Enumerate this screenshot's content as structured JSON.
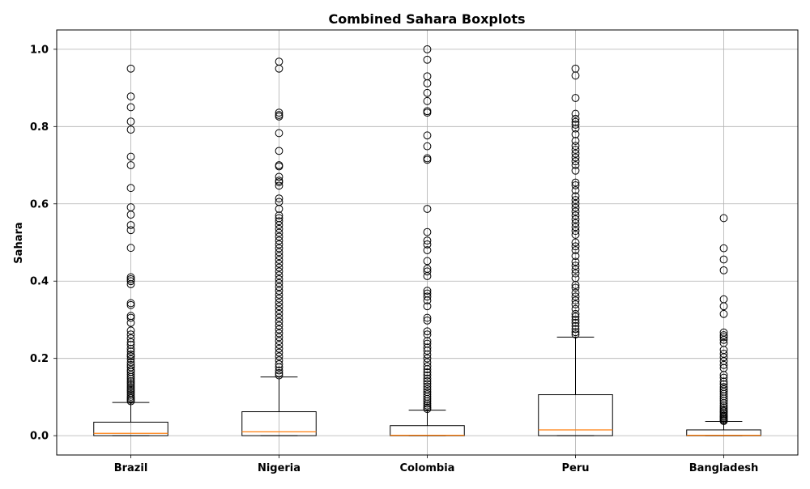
{
  "chart_data": {
    "type": "boxplot",
    "title": "Combined Sahara Boxplots",
    "xlabel": "",
    "ylabel": "Sahara",
    "ylim": [
      -0.05,
      1.05
    ],
    "yticks": [
      0.0,
      0.2,
      0.4,
      0.6,
      0.8,
      1.0
    ],
    "ytick_labels": [
      "0.0",
      "0.2",
      "0.4",
      "0.6",
      "0.8",
      "1.0"
    ],
    "grid": true,
    "colors": {
      "box": "#000000",
      "median": "#ff7f0e",
      "grid": "#b0b0b0"
    },
    "categories": [
      "Brazil",
      "Nigeria",
      "Colombia",
      "Peru",
      "Bangladesh"
    ],
    "boxes": [
      {
        "name": "Brazil",
        "whisker_low": 0.0,
        "q1": 0.0,
        "median": 0.006,
        "q3": 0.035,
        "whisker_high": 0.086,
        "outliers": [
          0.95,
          0.878,
          0.85,
          0.813,
          0.792,
          0.722,
          0.7,
          0.641,
          0.591,
          0.572,
          0.545,
          0.532,
          0.486,
          0.41,
          0.405,
          0.4,
          0.392,
          0.343,
          0.338,
          0.31,
          0.305,
          0.292,
          0.272,
          0.262,
          0.252,
          0.242,
          0.235,
          0.225,
          0.218,
          0.21,
          0.205,
          0.198,
          0.19,
          0.183,
          0.177,
          0.17,
          0.165,
          0.158,
          0.152,
          0.147,
          0.141,
          0.136,
          0.131,
          0.126,
          0.121,
          0.116,
          0.111,
          0.106,
          0.101,
          0.097,
          0.093,
          0.089
        ]
      },
      {
        "name": "Nigeria",
        "whisker_low": 0.0,
        "q1": 0.0,
        "median": 0.01,
        "q3": 0.062,
        "whisker_high": 0.152,
        "outliers": [
          0.968,
          0.95,
          0.836,
          0.83,
          0.826,
          0.783,
          0.737,
          0.7,
          0.697,
          0.67,
          0.66,
          0.656,
          0.647,
          0.614,
          0.605,
          0.587,
          0.57,
          0.563,
          0.555,
          0.545,
          0.535,
          0.525,
          0.515,
          0.505,
          0.495,
          0.485,
          0.475,
          0.465,
          0.455,
          0.445,
          0.435,
          0.425,
          0.415,
          0.405,
          0.395,
          0.385,
          0.375,
          0.365,
          0.355,
          0.345,
          0.335,
          0.325,
          0.315,
          0.305,
          0.295,
          0.285,
          0.275,
          0.265,
          0.255,
          0.245,
          0.235,
          0.225,
          0.215,
          0.205,
          0.195,
          0.185,
          0.177,
          0.169,
          0.162,
          0.156
        ]
      },
      {
        "name": "Colombia",
        "whisker_low": 0.0,
        "q1": 0.0,
        "median": 0.001,
        "q3": 0.026,
        "whisker_high": 0.066,
        "outliers": [
          1.0,
          0.973,
          0.93,
          0.912,
          0.887,
          0.866,
          0.84,
          0.836,
          0.777,
          0.749,
          0.718,
          0.714,
          0.587,
          0.527,
          0.505,
          0.495,
          0.48,
          0.452,
          0.432,
          0.425,
          0.413,
          0.375,
          0.368,
          0.36,
          0.35,
          0.335,
          0.305,
          0.298,
          0.27,
          0.262,
          0.245,
          0.238,
          0.228,
          0.22,
          0.21,
          0.2,
          0.19,
          0.18,
          0.172,
          0.164,
          0.156,
          0.148,
          0.141,
          0.134,
          0.127,
          0.12,
          0.113,
          0.107,
          0.101,
          0.095,
          0.089,
          0.083,
          0.078,
          0.073,
          0.069
        ]
      },
      {
        "name": "Peru",
        "whisker_low": 0.0,
        "q1": 0.0,
        "median": 0.015,
        "q3": 0.106,
        "whisker_high": 0.255,
        "outliers": [
          0.95,
          0.932,
          0.874,
          0.833,
          0.82,
          0.812,
          0.805,
          0.795,
          0.78,
          0.763,
          0.75,
          0.74,
          0.73,
          0.72,
          0.71,
          0.7,
          0.686,
          0.655,
          0.648,
          0.635,
          0.62,
          0.61,
          0.6,
          0.59,
          0.58,
          0.57,
          0.56,
          0.55,
          0.54,
          0.53,
          0.52,
          0.5,
          0.49,
          0.48,
          0.465,
          0.45,
          0.44,
          0.43,
          0.42,
          0.408,
          0.39,
          0.383,
          0.37,
          0.36,
          0.35,
          0.34,
          0.328,
          0.315,
          0.308,
          0.3,
          0.292,
          0.284,
          0.276,
          0.268,
          0.262
        ]
      },
      {
        "name": "Bangladesh",
        "whisker_low": 0.0,
        "q1": 0.0,
        "median": 0.001,
        "q3": 0.015,
        "whisker_high": 0.037,
        "outliers": [
          0.563,
          0.485,
          0.456,
          0.428,
          0.353,
          0.335,
          0.315,
          0.267,
          0.26,
          0.255,
          0.248,
          0.24,
          0.222,
          0.212,
          0.203,
          0.193,
          0.183,
          0.175,
          0.157,
          0.15,
          0.14,
          0.133,
          0.126,
          0.12,
          0.114,
          0.108,
          0.102,
          0.096,
          0.09,
          0.084,
          0.078,
          0.073,
          0.068,
          0.064,
          0.06,
          0.056,
          0.052,
          0.049,
          0.046,
          0.043,
          0.04,
          0.038
        ]
      }
    ]
  }
}
